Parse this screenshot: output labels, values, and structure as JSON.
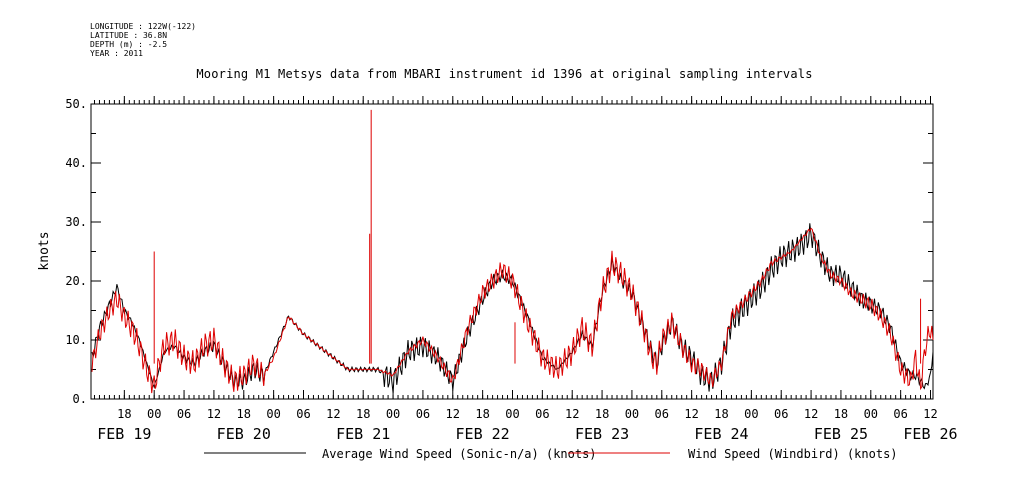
{
  "header": {
    "meta_lines": [
      "LONGITUDE : 122W(-122)",
      "LATITUDE : 36.8N",
      "DEPTH (m) : -2.5",
      "YEAR : 2011"
    ],
    "title": "Mooring M1 Metsys data from MBARI instrument id 1396 at original sampling intervals"
  },
  "chart_data": {
    "type": "line",
    "title": "Mooring M1 Metsys data from MBARI instrument id 1396 at original sampling intervals",
    "ylabel": "knots",
    "xlabel": "",
    "ylim": [
      0,
      50
    ],
    "yticks": [
      0,
      10,
      20,
      30,
      40,
      50
    ],
    "ytick_labels": [
      "0.",
      "10.",
      "20.",
      "30.",
      "40.",
      "50."
    ],
    "x_unit": "hours from FEB 19 00:00 2011",
    "xlim": [
      -12.7,
      156.5
    ],
    "hour_ticks": [
      {
        "h": -6,
        "label": "18"
      },
      {
        "h": 0,
        "label": "00"
      },
      {
        "h": 6,
        "label": "06"
      },
      {
        "h": 12,
        "label": "12"
      },
      {
        "h": 18,
        "label": "18"
      },
      {
        "h": 24,
        "label": "00"
      },
      {
        "h": 30,
        "label": "06"
      },
      {
        "h": 36,
        "label": "12"
      },
      {
        "h": 42,
        "label": "18"
      },
      {
        "h": 48,
        "label": "00"
      },
      {
        "h": 54,
        "label": "06"
      },
      {
        "h": 60,
        "label": "12"
      },
      {
        "h": 66,
        "label": "18"
      },
      {
        "h": 72,
        "label": "00"
      },
      {
        "h": 78,
        "label": "06"
      },
      {
        "h": 84,
        "label": "12"
      },
      {
        "h": 90,
        "label": "18"
      },
      {
        "h": 96,
        "label": "00"
      },
      {
        "h": 102,
        "label": "06"
      },
      {
        "h": 108,
        "label": "12"
      },
      {
        "h": 114,
        "label": "18"
      },
      {
        "h": 120,
        "label": "00"
      },
      {
        "h": 126,
        "label": "06"
      },
      {
        "h": 132,
        "label": "12"
      },
      {
        "h": 138,
        "label": "18"
      },
      {
        "h": 144,
        "label": "00"
      },
      {
        "h": 150,
        "label": "06"
      },
      {
        "h": 156,
        "label": "12"
      }
    ],
    "day_labels": [
      {
        "h": -6,
        "label": "FEB 19"
      },
      {
        "h": 18,
        "label": "FEB 20"
      },
      {
        "h": 42,
        "label": "FEB 21"
      },
      {
        "h": 66,
        "label": "FEB 22"
      },
      {
        "h": 90,
        "label": "FEB 23"
      },
      {
        "h": 114,
        "label": "FEB 24"
      },
      {
        "h": 138,
        "label": "FEB 25"
      },
      {
        "h": 156,
        "label": "FEB 26"
      }
    ],
    "series": [
      {
        "name": "Average Wind Speed (Sonic-n/a) (knots)",
        "color": "#000000",
        "x": [
          -12.5,
          -11,
          -9,
          -7.5,
          -6,
          -4.5,
          -3,
          -1.5,
          0,
          1,
          2,
          4,
          6,
          8,
          10,
          12,
          14,
          16,
          18,
          20,
          22,
          24,
          27,
          30,
          33,
          36,
          39,
          42,
          45,
          48,
          51,
          54,
          57,
          60,
          63,
          66,
          68,
          70,
          72,
          75,
          78,
          81,
          84,
          86,
          88,
          90,
          92,
          94,
          96,
          98,
          100,
          101,
          102,
          104,
          106,
          108,
          110,
          112,
          114,
          116,
          118,
          120,
          122,
          124,
          126,
          128,
          130,
          132,
          134,
          136,
          138,
          140,
          142,
          144,
          146,
          148,
          150,
          152,
          153,
          154,
          155,
          156,
          156.5
        ],
        "y": [
          7,
          12,
          16,
          19,
          15,
          13,
          10,
          6,
          2,
          5,
          8,
          9,
          7,
          6,
          8,
          9,
          6,
          3,
          3,
          5,
          4,
          8,
          14,
          11,
          9,
          7,
          5,
          5,
          5,
          3,
          8,
          9,
          7,
          3,
          11,
          17,
          20,
          21,
          20,
          14,
          7,
          5,
          8,
          11,
          9,
          18,
          23,
          20,
          18,
          13,
          8,
          6,
          9,
          13,
          9,
          7,
          4,
          3,
          6,
          13,
          15,
          17,
          19,
          22,
          24,
          25,
          26,
          28,
          24,
          21,
          21,
          19,
          17,
          16,
          15,
          12,
          6,
          4,
          4,
          3,
          2,
          4,
          8
        ],
        "spikes": []
      },
      {
        "name": "Wind Speed (Windbird) (knots)",
        "color": "#dd0000",
        "x": [
          -12.5,
          -11,
          -9,
          -7.5,
          -6,
          -4.5,
          -3,
          -1.5,
          0,
          1,
          2,
          4,
          6,
          8,
          10,
          12,
          14,
          16,
          18,
          20,
          22,
          24,
          27,
          30,
          33,
          36,
          39,
          42,
          45,
          48,
          51,
          54,
          57,
          60,
          63,
          66,
          68,
          70,
          72,
          75,
          78,
          81,
          84,
          86,
          88,
          90,
          92,
          94,
          96,
          98,
          100,
          101,
          102,
          104,
          106,
          108,
          110,
          112,
          114,
          116,
          118,
          120,
          122,
          124,
          126,
          128,
          130,
          132,
          134,
          136,
          138,
          140,
          142,
          144,
          146,
          148,
          150,
          152,
          153,
          154,
          155,
          156,
          156.5
        ],
        "y": [
          6,
          11,
          15,
          17,
          14,
          12,
          9,
          5,
          2,
          6,
          9,
          10,
          7,
          6,
          9,
          10,
          6,
          3,
          4,
          6,
          4,
          7,
          14,
          11,
          9,
          7,
          5,
          5,
          5,
          4,
          8,
          10,
          7,
          3,
          12,
          18,
          20,
          22,
          20,
          13,
          7,
          5,
          8,
          12,
          9,
          18,
          23,
          21,
          18,
          13,
          7,
          6,
          10,
          13,
          9,
          6,
          5,
          3,
          6,
          14,
          16,
          18,
          20,
          23,
          24,
          25,
          27,
          29,
          24,
          21,
          20,
          18,
          17,
          16,
          14,
          11,
          5,
          3,
          7,
          2,
          9,
          12,
          10
        ],
        "spikes": [
          {
            "x": 0,
            "y": 25
          },
          {
            "x": 43.3,
            "y": 28
          },
          {
            "x": 43.6,
            "y": 49
          },
          {
            "x": 72.5,
            "y": 13
          },
          {
            "x": 154,
            "y": 17
          }
        ]
      }
    ],
    "legend_placement": "bottom",
    "grid": false
  },
  "legend": {
    "items": [
      {
        "label": "Average Wind Speed (Sonic-n/a) (knots)",
        "color": "#000000"
      },
      {
        "label": "Wind Speed (Windbird) (knots)",
        "color": "#dd0000"
      }
    ]
  }
}
